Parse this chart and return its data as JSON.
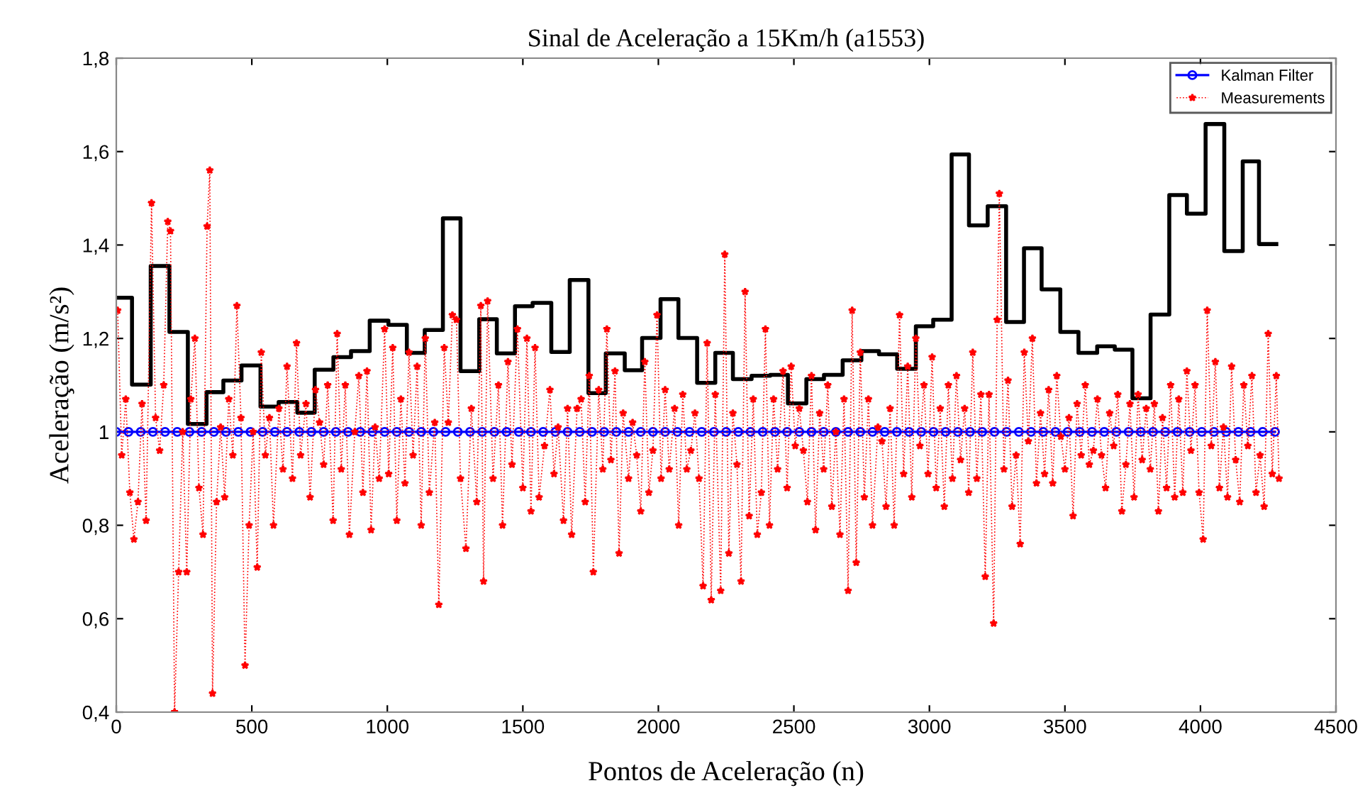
{
  "chart_data": {
    "type": "line",
    "title": "Sinal de Aceleração a 15Km/h (a1553)",
    "xlabel": "Pontos de Aceleração (n)",
    "ylabel": "Aceleração (m/s²)",
    "xlim": [
      0,
      4500
    ],
    "xticks": [
      0,
      500,
      1000,
      1500,
      2000,
      2500,
      3000,
      3500,
      4000,
      4500
    ],
    "ylim": [
      0.4,
      1.8
    ],
    "yticks": [
      {
        "value": 0.4,
        "label": "0,4"
      },
      {
        "value": 0.6,
        "label": "0,6"
      },
      {
        "value": 0.8,
        "label": "0,8"
      },
      {
        "value": 1,
        "label": "1"
      },
      {
        "value": 1.2,
        "label": "1,2"
      },
      {
        "value": 1.4,
        "label": "1,4"
      },
      {
        "value": 1.6,
        "label": "1,6"
      },
      {
        "value": 1.8,
        "label": "1,8"
      }
    ],
    "grid": false,
    "legend": "top right",
    "series": [
      {
        "type": "step",
        "color": "#000000",
        "line_style": "solid",
        "marker": "none",
        "x": [
          0,
          58,
          127,
          196,
          264,
          333,
          395,
          462,
          532,
          599,
          668,
          732,
          801,
          866,
          935,
          1004,
          1072,
          1138,
          1205,
          1270,
          1339,
          1404,
          1471,
          1536,
          1605,
          1673,
          1742,
          1806,
          1876,
          1940,
          2008,
          2074,
          2143,
          2210,
          2275,
          2344,
          2413,
          2478,
          2546,
          2611,
          2680,
          2749,
          2814,
          2881,
          2950,
          3014,
          3082,
          3146,
          3215,
          3283,
          3349,
          3414,
          3483,
          3550,
          3619,
          3684,
          3749,
          3816,
          3885,
          3950,
          4019,
          4088,
          4156,
          4216,
          4280
        ],
        "values": [
          1.287,
          1.101,
          1.355,
          1.214,
          1.017,
          1.085,
          1.11,
          1.142,
          1.054,
          1.064,
          1.041,
          1.133,
          1.16,
          1.173,
          1.238,
          1.229,
          1.169,
          1.218,
          1.457,
          1.13,
          1.241,
          1.168,
          1.269,
          1.276,
          1.171,
          1.325,
          1.083,
          1.168,
          1.132,
          1.201,
          1.284,
          1.201,
          1.105,
          1.169,
          1.113,
          1.12,
          1.122,
          1.061,
          1.113,
          1.122,
          1.153,
          1.173,
          1.166,
          1.135,
          1.226,
          1.24,
          1.594,
          1.442,
          1.483,
          1.235,
          1.393,
          1.305,
          1.214,
          1.169,
          1.183,
          1.176,
          1.072,
          1.251,
          1.507,
          1.467,
          1.659,
          1.387,
          1.579,
          1.402,
          1.402
        ]
      },
      {
        "name": "Kalman Filter",
        "color": "#0000ff",
        "line_style": "solid",
        "marker": "circle",
        "x": [
          0,
          45,
          90,
          135,
          180,
          225,
          270,
          315,
          360,
          405,
          450,
          495,
          540,
          585,
          630,
          675,
          720,
          765,
          810,
          855,
          900,
          945,
          990,
          1035,
          1080,
          1125,
          1170,
          1215,
          1260,
          1305,
          1350,
          1395,
          1440,
          1485,
          1530,
          1575,
          1620,
          1665,
          1710,
          1755,
          1800,
          1845,
          1890,
          1935,
          1980,
          2025,
          2070,
          2115,
          2160,
          2205,
          2250,
          2295,
          2340,
          2385,
          2430,
          2475,
          2520,
          2565,
          2610,
          2655,
          2700,
          2745,
          2790,
          2835,
          2880,
          2925,
          2970,
          3015,
          3060,
          3105,
          3150,
          3195,
          3240,
          3285,
          3330,
          3375,
          3420,
          3465,
          3510,
          3555,
          3600,
          3645,
          3690,
          3735,
          3780,
          3825,
          3870,
          3915,
          3960,
          4005,
          4050,
          4095,
          4140,
          4185,
          4230,
          4275
        ],
        "values": [
          1,
          1,
          1,
          1,
          1,
          1,
          1,
          1,
          1,
          1,
          1,
          1,
          1,
          1,
          1,
          1,
          1,
          1,
          1,
          1,
          1,
          1,
          1,
          1,
          1,
          1,
          1,
          1,
          1,
          1,
          1,
          1,
          1,
          1,
          1,
          1,
          1,
          1,
          1,
          1,
          1,
          1,
          1,
          1,
          1,
          1,
          1,
          1,
          1,
          1,
          1,
          1,
          1,
          1,
          1,
          1,
          1,
          1,
          1,
          1,
          1,
          1,
          1,
          1,
          1,
          1,
          1,
          1,
          1,
          1,
          1,
          1,
          1,
          1,
          1,
          1,
          1,
          1,
          1,
          1,
          1,
          1,
          1,
          1,
          1,
          1,
          1,
          1,
          1,
          1,
          1,
          1,
          1,
          1,
          1,
          1
        ]
      },
      {
        "name": "Measurements",
        "color": "#ff0000",
        "line_style": "dotted",
        "marker": "star",
        "x": [
          5,
          20,
          35,
          50,
          65,
          80,
          95,
          110,
          130,
          145,
          160,
          175,
          190,
          200,
          215,
          230,
          245,
          260,
          275,
          290,
          305,
          320,
          335,
          345,
          355,
          370,
          385,
          400,
          415,
          430,
          445,
          460,
          475,
          490,
          505,
          520,
          535,
          550,
          565,
          580,
          600,
          615,
          630,
          650,
          665,
          680,
          700,
          715,
          735,
          750,
          765,
          780,
          800,
          815,
          830,
          845,
          860,
          880,
          895,
          910,
          925,
          940,
          955,
          970,
          990,
          1005,
          1020,
          1035,
          1050,
          1065,
          1080,
          1095,
          1110,
          1125,
          1140,
          1155,
          1175,
          1190,
          1210,
          1225,
          1240,
          1255,
          1270,
          1290,
          1310,
          1330,
          1345,
          1355,
          1370,
          1390,
          1410,
          1425,
          1445,
          1460,
          1480,
          1500,
          1515,
          1530,
          1545,
          1560,
          1580,
          1600,
          1615,
          1630,
          1650,
          1665,
          1680,
          1700,
          1715,
          1730,
          1745,
          1760,
          1780,
          1795,
          1810,
          1825,
          1840,
          1855,
          1870,
          1890,
          1905,
          1920,
          1935,
          1950,
          1965,
          1980,
          1995,
          2010,
          2025,
          2040,
          2060,
          2075,
          2090,
          2105,
          2120,
          2135,
          2150,
          2165,
          2180,
          2195,
          2210,
          2230,
          2245,
          2260,
          2275,
          2290,
          2305,
          2320,
          2335,
          2350,
          2365,
          2380,
          2395,
          2410,
          2425,
          2440,
          2460,
          2475,
          2490,
          2505,
          2520,
          2535,
          2550,
          2565,
          2580,
          2595,
          2610,
          2625,
          2640,
          2655,
          2670,
          2685,
          2700,
          2715,
          2730,
          2745,
          2760,
          2775,
          2790,
          2810,
          2825,
          2840,
          2855,
          2870,
          2890,
          2905,
          2920,
          2935,
          2950,
          2965,
          2980,
          2995,
          3010,
          3025,
          3040,
          3055,
          3070,
          3085,
          3100,
          3115,
          3130,
          3145,
          3160,
          3175,
          3190,
          3206,
          3220,
          3237,
          3250,
          3258,
          3275,
          3290,
          3305,
          3320,
          3335,
          3350,
          3365,
          3380,
          3395,
          3410,
          3425,
          3440,
          3455,
          3470,
          3485,
          3500,
          3515,
          3530,
          3545,
          3560,
          3575,
          3590,
          3605,
          3620,
          3635,
          3650,
          3665,
          3680,
          3695,
          3710,
          3725,
          3740,
          3755,
          3770,
          3785,
          3800,
          3815,
          3830,
          3845,
          3860,
          3875,
          3890,
          3905,
          3920,
          3935,
          3950,
          3965,
          3980,
          3995,
          4010,
          4025,
          4040,
          4055,
          4070,
          4085,
          4100,
          4115,
          4130,
          4145,
          4160,
          4175,
          4190,
          4205,
          4220,
          4235,
          4250,
          4265,
          4280,
          4290
        ],
        "values": [
          1.26,
          0.95,
          1.07,
          0.87,
          0.77,
          0.85,
          1.06,
          0.81,
          1.49,
          1.03,
          0.96,
          1.1,
          1.45,
          1.43,
          0.4,
          0.7,
          1.0,
          0.7,
          1.07,
          1.2,
          0.88,
          0.78,
          1.44,
          1.56,
          0.44,
          0.85,
          1.01,
          0.86,
          1.07,
          0.95,
          1.27,
          1.03,
          0.5,
          0.8,
          1.0,
          0.71,
          1.17,
          0.95,
          1.03,
          0.8,
          1.05,
          0.92,
          1.14,
          0.9,
          1.19,
          0.95,
          1.06,
          0.86,
          1.09,
          1.02,
          0.93,
          1.1,
          0.81,
          1.21,
          0.92,
          1.1,
          0.78,
          1.0,
          1.12,
          0.87,
          1.13,
          0.79,
          1.01,
          0.9,
          1.22,
          0.91,
          1.18,
          0.81,
          1.07,
          0.89,
          1.17,
          0.95,
          1.14,
          0.8,
          1.2,
          0.87,
          1.02,
          0.63,
          1.18,
          1.02,
          1.25,
          1.24,
          0.9,
          0.75,
          1.05,
          0.85,
          1.27,
          0.68,
          1.28,
          0.9,
          1.1,
          0.8,
          1.15,
          0.93,
          1.22,
          0.88,
          1.2,
          0.83,
          1.18,
          0.86,
          0.97,
          1.09,
          0.91,
          1.01,
          0.81,
          1.05,
          0.78,
          1.05,
          1.07,
          0.85,
          1.12,
          0.7,
          1.09,
          0.92,
          1.22,
          0.94,
          1.13,
          0.74,
          1.04,
          0.9,
          1.02,
          0.95,
          0.83,
          1.15,
          0.87,
          0.96,
          1.25,
          0.9,
          1.09,
          0.92,
          1.05,
          0.8,
          1.08,
          0.92,
          0.96,
          1.04,
          0.9,
          0.67,
          1.19,
          0.64,
          1.08,
          0.66,
          1.38,
          0.74,
          1.04,
          0.93,
          0.68,
          1.3,
          0.82,
          1.07,
          0.78,
          0.87,
          1.22,
          0.8,
          1.07,
          0.92,
          1.13,
          0.88,
          1.14,
          0.97,
          1.05,
          0.96,
          0.85,
          1.12,
          0.79,
          1.04,
          0.92,
          1.1,
          0.84,
          1.0,
          0.78,
          1.07,
          0.66,
          1.26,
          0.72,
          1.17,
          0.86,
          1.07,
          0.8,
          1.01,
          0.98,
          0.84,
          1.05,
          0.8,
          1.25,
          0.91,
          1.14,
          0.86,
          1.2,
          0.97,
          1.1,
          0.91,
          1.16,
          0.88,
          1.05,
          0.84,
          1.1,
          0.9,
          1.12,
          0.94,
          1.05,
          0.87,
          1.17,
          0.9,
          1.08,
          0.69,
          1.08,
          0.59,
          1.24,
          1.51,
          0.92,
          1.11,
          0.84,
          0.95,
          0.76,
          1.17,
          0.98,
          1.2,
          0.89,
          1.04,
          0.91,
          1.09,
          0.89,
          1.12,
          0.99,
          0.92,
          1.03,
          0.82,
          1.06,
          0.95,
          1.1,
          0.93,
          0.96,
          1.07,
          0.95,
          0.88,
          1.04,
          0.97,
          1.08,
          0.83,
          0.93,
          1.06,
          0.86,
          1.08,
          0.94,
          1.05,
          0.92,
          1.06,
          0.83,
          1.03,
          0.88,
          1.1,
          0.86,
          1.07,
          0.87,
          1.13,
          0.96,
          1.1,
          0.87,
          0.77,
          1.26,
          0.97,
          1.15,
          0.88,
          1.01,
          0.86,
          1.14,
          0.94,
          0.85,
          1.1,
          0.97,
          1.12,
          0.87,
          0.95,
          0.84,
          1.21,
          0.91,
          1.12,
          0.9
        ]
      }
    ]
  }
}
